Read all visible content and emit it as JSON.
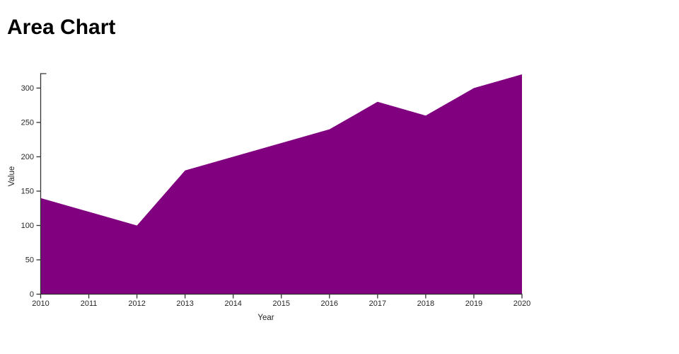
{
  "page": {
    "title": "Area Chart"
  },
  "chart_data": {
    "type": "area",
    "title": "Area Chart",
    "xlabel": "Year",
    "ylabel": "Value",
    "x": [
      2010,
      2011,
      2012,
      2013,
      2014,
      2015,
      2016,
      2017,
      2018,
      2019,
      2020
    ],
    "values": [
      140,
      120,
      100,
      180,
      200,
      220,
      240,
      280,
      260,
      300,
      320
    ],
    "xlim": [
      2010,
      2020
    ],
    "ylim": [
      0,
      320
    ],
    "yticks": [
      0,
      50,
      100,
      150,
      200,
      250,
      300
    ],
    "xtick_labels": [
      "2010",
      "2011",
      "2012",
      "2013",
      "2014",
      "2015",
      "2016",
      "2017",
      "2018",
      "2019",
      "2020"
    ],
    "grid": false,
    "legend": null,
    "colors": {
      "area_fill": "#800080",
      "axis_line": "#333333",
      "tick_text": "#262626",
      "title_text": "#000000",
      "background": "#ffffff"
    }
  }
}
